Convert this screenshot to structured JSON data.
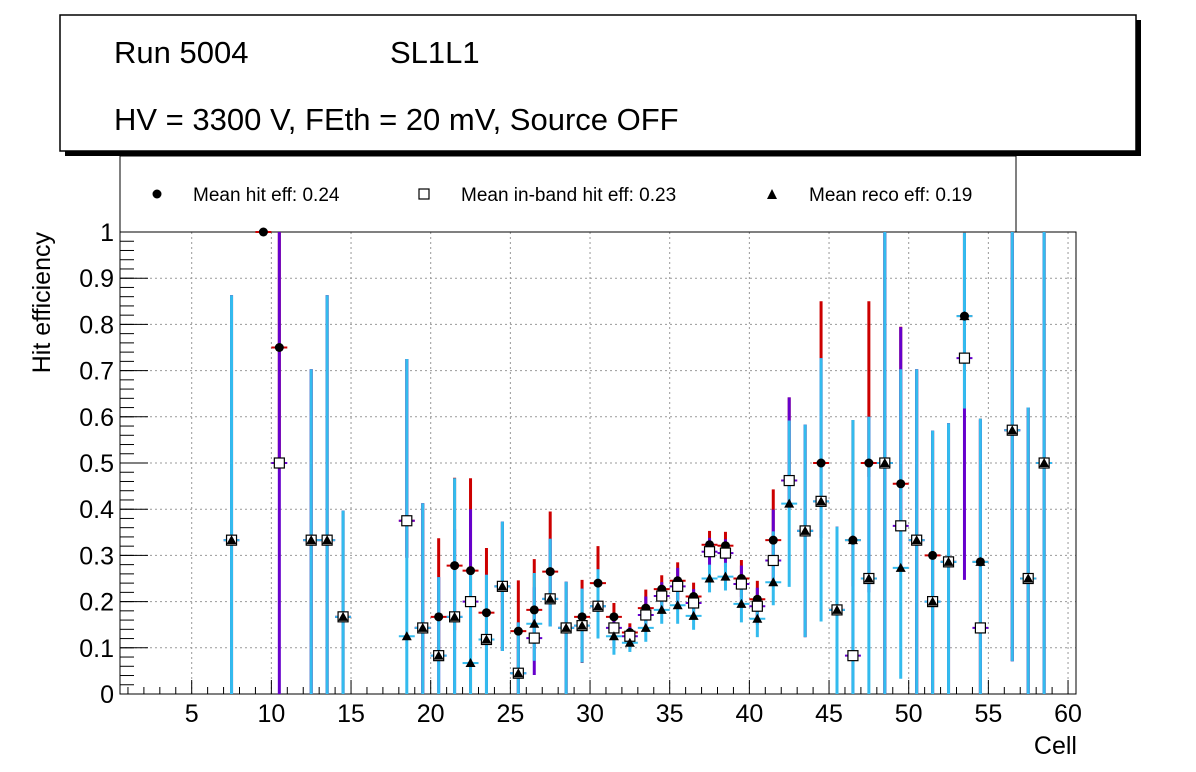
{
  "header": {
    "run": "Run 5004",
    "layer": "SL1L1",
    "conditions": "HV = 3300 V, FEth = 20 mV, Source OFF"
  },
  "legend": {
    "items": [
      {
        "marker": "filled-circle",
        "label": "Mean hit  eff: 0.24"
      },
      {
        "marker": "open-square",
        "label": "Mean in-band hit eff: 0.23"
      },
      {
        "marker": "filled-triangle",
        "label": "Mean reco eff: 0.19"
      }
    ]
  },
  "colors": {
    "hit_err": "#cc0000",
    "inband_err": "#6600cc",
    "reco_err": "#33bbee",
    "grid": "#999999"
  },
  "chart_data": {
    "type": "scatter",
    "xlabel": "Cell",
    "ylabel": "Hit efficiency",
    "xlim": [
      0.5,
      60.5
    ],
    "ylim": [
      0,
      1
    ],
    "xticks": [
      5,
      10,
      15,
      20,
      25,
      30,
      35,
      40,
      45,
      50,
      55,
      60
    ],
    "yticks": [
      0,
      0.1,
      0.2,
      0.3,
      0.4,
      0.5,
      0.6,
      0.7,
      0.8,
      0.9,
      1
    ],
    "ytick_labels": [
      "0",
      "0.1",
      "0.2",
      "0.3",
      "0.4",
      "0.5",
      "0.6",
      "0.7",
      "0.8",
      "0.9",
      "1"
    ],
    "grid": true,
    "series": [
      {
        "name": "Mean hit eff",
        "marker": "filled-circle",
        "x": [
          7.5,
          9.5,
          10.5,
          12.5,
          13.5,
          14.5,
          18.5,
          19.5,
          20.5,
          21.5,
          22.5,
          23.5,
          24.5,
          25.5,
          26.5,
          27.5,
          28.5,
          29.5,
          30.5,
          31.5,
          32.5,
          33.5,
          34.5,
          35.5,
          36.5,
          37.5,
          38.5,
          39.5,
          40.5,
          41.5,
          42.5,
          43.5,
          44.5,
          45.5,
          46.5,
          47.5,
          48.5,
          49.5,
          50.5,
          51.5,
          52.5,
          53.5,
          54.5,
          56.5,
          57.5,
          58.5
        ],
        "y": [
          0.333,
          1.0,
          0.75,
          0.333,
          0.333,
          0.167,
          0.375,
          0.143,
          0.167,
          0.278,
          0.267,
          0.176,
          0.233,
          0.136,
          0.182,
          0.265,
          0.143,
          0.167,
          0.24,
          0.167,
          0.133,
          0.186,
          0.227,
          0.245,
          0.211,
          0.323,
          0.321,
          0.25,
          0.205,
          0.333,
          0.462,
          0.353,
          0.5,
          0.182,
          0.333,
          0.5,
          0.5,
          0.455,
          0.333,
          0.3,
          0.286,
          0.818,
          0.286,
          0.571,
          0.25,
          0.5
        ],
        "err_lo": [
          0.333,
          0,
          0.25,
          0.333,
          0.333,
          0.167,
          0.08,
          0.143,
          0.07,
          0.14,
          0.267,
          0.06,
          0.14,
          0.136,
          0.07,
          0.06,
          0.143,
          0.1,
          0.07,
          0.04,
          0.02,
          0.03,
          0.03,
          0.04,
          0.03,
          0.03,
          0.03,
          0.04,
          0.04,
          0.05,
          0.06,
          0.23,
          0.08,
          0.182,
          0.1,
          0.03,
          0.5,
          0.1,
          0.333,
          0.3,
          0.286,
          0.07,
          0.286,
          0.5,
          0.25,
          0.5
        ],
        "err_hi": [
          0.53,
          0,
          0.25,
          0.37,
          0.53,
          0.23,
          0.35,
          0.27,
          0.17,
          0.19,
          0.2,
          0.14,
          0.14,
          0.11,
          0.11,
          0.13,
          0.1,
          0.08,
          0.08,
          0.03,
          0.02,
          0.04,
          0.03,
          0.04,
          0.03,
          0.03,
          0.03,
          0.04,
          0.04,
          0.11,
          0.18,
          0.23,
          0.35,
          0.18,
          0.26,
          0.35,
          0.5,
          0.34,
          0.37,
          0.27,
          0.3,
          0.18,
          0.31,
          0.43,
          0.37,
          0.5
        ]
      },
      {
        "name": "Mean in-band hit eff",
        "marker": "open-square",
        "x": [
          7.5,
          10.5,
          12.5,
          13.5,
          14.5,
          18.5,
          19.5,
          20.5,
          21.5,
          22.5,
          23.5,
          24.5,
          25.5,
          26.5,
          27.5,
          28.5,
          29.5,
          30.5,
          31.5,
          32.5,
          33.5,
          34.5,
          35.5,
          36.5,
          37.5,
          38.5,
          39.5,
          40.5,
          41.5,
          42.5,
          43.5,
          44.5,
          45.5,
          46.5,
          47.5,
          48.5,
          49.5,
          50.5,
          51.5,
          52.5,
          53.5,
          54.5,
          56.5,
          57.5,
          58.5
        ],
        "y": [
          0.333,
          0.5,
          0.333,
          0.333,
          0.167,
          0.375,
          0.143,
          0.083,
          0.167,
          0.2,
          0.118,
          0.233,
          0.045,
          0.121,
          0.206,
          0.143,
          0.148,
          0.19,
          0.143,
          0.125,
          0.171,
          0.212,
          0.233,
          0.197,
          0.308,
          0.305,
          0.238,
          0.19,
          0.289,
          0.462,
          0.353,
          0.417,
          0.182,
          0.083,
          0.25,
          0.5,
          0.364,
          0.333,
          0.2,
          0.286,
          0.727,
          0.143,
          0.571,
          0.25,
          0.5
        ],
        "err_lo": [
          0.333,
          0.5,
          0.333,
          0.333,
          0.167,
          0.08,
          0.143,
          0.08,
          0.167,
          0.12,
          0.118,
          0.14,
          0.045,
          0.08,
          0.06,
          0.143,
          0.08,
          0.07,
          0.04,
          0.02,
          0.03,
          0.03,
          0.04,
          0.03,
          0.03,
          0.03,
          0.04,
          0.04,
          0.05,
          0.06,
          0.23,
          0.08,
          0.182,
          0.083,
          0.03,
          0.5,
          0.1,
          0.333,
          0.2,
          0.286,
          0.48,
          0.143,
          0.5,
          0.25,
          0.5
        ],
        "err_hi": [
          0.53,
          0.5,
          0.37,
          0.53,
          0.23,
          0.35,
          0.27,
          0.17,
          0.19,
          0.2,
          0.14,
          0.14,
          0.11,
          0.11,
          0.13,
          0.1,
          0.08,
          0.08,
          0.03,
          0.02,
          0.04,
          0.03,
          0.04,
          0.03,
          0.03,
          0.03,
          0.04,
          0.04,
          0.11,
          0.18,
          0.23,
          0.31,
          0.18,
          0.26,
          0.35,
          0.5,
          0.43,
          0.37,
          0.37,
          0.3,
          0.27,
          0.45,
          0.43,
          0.37,
          0.5
        ]
      },
      {
        "name": "Mean reco eff",
        "marker": "filled-triangle",
        "x": [
          7.5,
          12.5,
          13.5,
          14.5,
          18.5,
          19.5,
          20.5,
          21.5,
          22.5,
          23.5,
          24.5,
          25.5,
          26.5,
          27.5,
          28.5,
          29.5,
          30.5,
          31.5,
          32.5,
          33.5,
          34.5,
          35.5,
          36.5,
          37.5,
          38.5,
          39.5,
          40.5,
          41.5,
          42.5,
          43.5,
          44.5,
          45.5,
          46.5,
          47.5,
          48.5,
          49.5,
          50.5,
          51.5,
          52.5,
          53.5,
          54.5,
          56.5,
          57.5,
          58.5
        ],
        "y": [
          0.333,
          0.333,
          0.333,
          0.167,
          0.125,
          0.143,
          0.083,
          0.167,
          0.067,
          0.118,
          0.233,
          0.045,
          0.152,
          0.206,
          0.143,
          0.148,
          0.19,
          0.125,
          0.111,
          0.143,
          0.182,
          0.192,
          0.169,
          0.25,
          0.254,
          0.195,
          0.163,
          0.242,
          0.412,
          0.353,
          0.417,
          0.182,
          0.333,
          0.25,
          0.5,
          0.273,
          0.333,
          0.2,
          0.286,
          0.818,
          0.286,
          0.571,
          0.25,
          0.5
        ],
        "err_lo": [
          0.333,
          0.333,
          0.333,
          0.167,
          0.125,
          0.143,
          0.083,
          0.167,
          0.067,
          0.118,
          0.14,
          0.045,
          0.08,
          0.06,
          0.143,
          0.08,
          0.07,
          0.04,
          0.02,
          0.03,
          0.03,
          0.04,
          0.03,
          0.03,
          0.03,
          0.04,
          0.04,
          0.05,
          0.18,
          0.23,
          0.26,
          0.182,
          0.333,
          0.25,
          0.5,
          0.24,
          0.333,
          0.2,
          0.286,
          0.2,
          0.286,
          0.5,
          0.25,
          0.5
        ],
        "err_hi": [
          0.53,
          0.37,
          0.53,
          0.23,
          0.6,
          0.27,
          0.17,
          0.3,
          0.2,
          0.14,
          0.14,
          0.11,
          0.11,
          0.13,
          0.1,
          0.08,
          0.08,
          0.03,
          0.02,
          0.04,
          0.03,
          0.04,
          0.03,
          0.03,
          0.03,
          0.04,
          0.04,
          0.11,
          0.18,
          0.23,
          0.31,
          0.18,
          0.26,
          0.35,
          0.5,
          0.43,
          0.37,
          0.37,
          0.3,
          0.18,
          0.31,
          0.43,
          0.37,
          0.5
        ]
      }
    ]
  }
}
